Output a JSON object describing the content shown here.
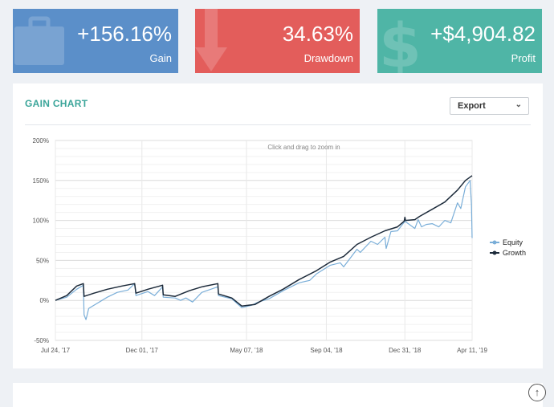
{
  "cards": {
    "gain": {
      "value": "+156.16%",
      "label": "Gain",
      "color": "#5b8fc9",
      "icon": "briefcase-icon"
    },
    "drawdown": {
      "value": "34.63%",
      "label": "Drawdown",
      "color": "#e35d5b",
      "icon": "down-arrow-icon"
    },
    "profit": {
      "value": "+$4,904.82",
      "label": "Profit",
      "color": "#4fb5a6",
      "icon": "dollar-icon"
    }
  },
  "panel": {
    "title": "GAIN CHART",
    "export_label": "Export",
    "export_icon": "chevron-down-icon"
  },
  "scroll_top_icon": "arrow-up-circle-icon",
  "chart_data": {
    "type": "line",
    "zoom_hint": "Click and drag to zoom in",
    "x_ticks": [
      {
        "date": "2017-07-24",
        "label": "Jul 24, '17"
      },
      {
        "date": "2017-12-01",
        "label": "Dec 01, '17"
      },
      {
        "date": "2018-05-07",
        "label": "May 07, '18"
      },
      {
        "date": "2018-09-04",
        "label": "Sep 04, '18"
      },
      {
        "date": "2018-12-31",
        "label": "Dec 31, '18"
      },
      {
        "date": "2019-04-11",
        "label": "Apr 11, '19"
      }
    ],
    "y_ticks": [
      -50,
      0,
      50,
      100,
      150,
      200
    ],
    "y_tick_labels": [
      "-50%",
      "0%",
      "50%",
      "100%",
      "150%",
      "200%"
    ],
    "ylim": [
      -50,
      200
    ],
    "legend_position": "right",
    "grid": true,
    "series": [
      {
        "name": "Growth",
        "color": "#1c2a3a",
        "points": [
          [
            "2017-07-24",
            0
          ],
          [
            "2017-08-10",
            6
          ],
          [
            "2017-08-25",
            18
          ],
          [
            "2017-09-04",
            21
          ],
          [
            "2017-09-05",
            5
          ],
          [
            "2017-09-20",
            9
          ],
          [
            "2017-10-10",
            14
          ],
          [
            "2017-11-01",
            18
          ],
          [
            "2017-11-20",
            21
          ],
          [
            "2017-11-22",
            9
          ],
          [
            "2017-12-10",
            14
          ],
          [
            "2018-01-01",
            19
          ],
          [
            "2018-01-02",
            7
          ],
          [
            "2018-01-20",
            5
          ],
          [
            "2018-02-10",
            12
          ],
          [
            "2018-03-01",
            17
          ],
          [
            "2018-03-25",
            21
          ],
          [
            "2018-03-26",
            8
          ],
          [
            "2018-04-15",
            3
          ],
          [
            "2018-04-30",
            -7
          ],
          [
            "2018-05-20",
            -5
          ],
          [
            "2018-06-10",
            5
          ],
          [
            "2018-07-01",
            14
          ],
          [
            "2018-07-25",
            26
          ],
          [
            "2018-08-20",
            37
          ],
          [
            "2018-09-10",
            48
          ],
          [
            "2018-09-30",
            55
          ],
          [
            "2018-10-20",
            70
          ],
          [
            "2018-11-10",
            79
          ],
          [
            "2018-12-01",
            87
          ],
          [
            "2018-12-20",
            92
          ],
          [
            "2018-12-30",
            99
          ],
          [
            "2018-12-31",
            104
          ],
          [
            "2019-01-01",
            100
          ],
          [
            "2019-01-15",
            101
          ],
          [
            "2019-01-22",
            105
          ],
          [
            "2019-02-10",
            114
          ],
          [
            "2019-03-01",
            123
          ],
          [
            "2019-03-20",
            138
          ],
          [
            "2019-04-01",
            150
          ],
          [
            "2019-04-11",
            156
          ]
        ]
      },
      {
        "name": "Equity",
        "color": "#7aaed8",
        "points": [
          [
            "2017-07-24",
            0
          ],
          [
            "2017-08-10",
            4
          ],
          [
            "2017-08-25",
            14
          ],
          [
            "2017-09-04",
            19
          ],
          [
            "2017-09-05",
            -18
          ],
          [
            "2017-09-08",
            -24
          ],
          [
            "2017-09-12",
            -10
          ],
          [
            "2017-09-22",
            -5
          ],
          [
            "2017-10-10",
            4
          ],
          [
            "2017-10-25",
            10
          ],
          [
            "2017-11-10",
            13
          ],
          [
            "2017-11-20",
            21
          ],
          [
            "2017-11-22",
            6
          ],
          [
            "2017-12-10",
            11
          ],
          [
            "2017-12-20",
            6
          ],
          [
            "2018-01-01",
            17
          ],
          [
            "2018-01-02",
            4
          ],
          [
            "2018-01-20",
            3
          ],
          [
            "2018-01-28",
            0
          ],
          [
            "2018-02-05",
            3
          ],
          [
            "2018-02-15",
            -2
          ],
          [
            "2018-03-01",
            10
          ],
          [
            "2018-03-25",
            17
          ],
          [
            "2018-03-26",
            6
          ],
          [
            "2018-04-15",
            2
          ],
          [
            "2018-04-30",
            -9
          ],
          [
            "2018-05-15",
            -6
          ],
          [
            "2018-05-25",
            -2
          ],
          [
            "2018-06-10",
            2
          ],
          [
            "2018-07-01",
            12
          ],
          [
            "2018-07-25",
            22
          ],
          [
            "2018-08-10",
            25
          ],
          [
            "2018-08-20",
            33
          ],
          [
            "2018-09-10",
            44
          ],
          [
            "2018-09-25",
            47
          ],
          [
            "2018-09-30",
            42
          ],
          [
            "2018-10-20",
            64
          ],
          [
            "2018-10-25",
            60
          ],
          [
            "2018-11-10",
            74
          ],
          [
            "2018-11-20",
            70
          ],
          [
            "2018-12-01",
            79
          ],
          [
            "2018-12-03",
            65
          ],
          [
            "2018-12-10",
            86
          ],
          [
            "2018-12-20",
            87
          ],
          [
            "2018-12-31",
            99
          ],
          [
            "2019-01-10",
            93
          ],
          [
            "2019-01-15",
            90
          ],
          [
            "2019-01-20",
            101
          ],
          [
            "2019-01-25",
            92
          ],
          [
            "2019-02-01",
            95
          ],
          [
            "2019-02-10",
            96
          ],
          [
            "2019-02-20",
            92
          ],
          [
            "2019-03-01",
            100
          ],
          [
            "2019-03-10",
            97
          ],
          [
            "2019-03-20",
            122
          ],
          [
            "2019-03-25",
            115
          ],
          [
            "2019-04-01",
            142
          ],
          [
            "2019-04-08",
            150
          ],
          [
            "2019-04-10",
            120
          ],
          [
            "2019-04-11",
            78
          ]
        ]
      }
    ]
  }
}
